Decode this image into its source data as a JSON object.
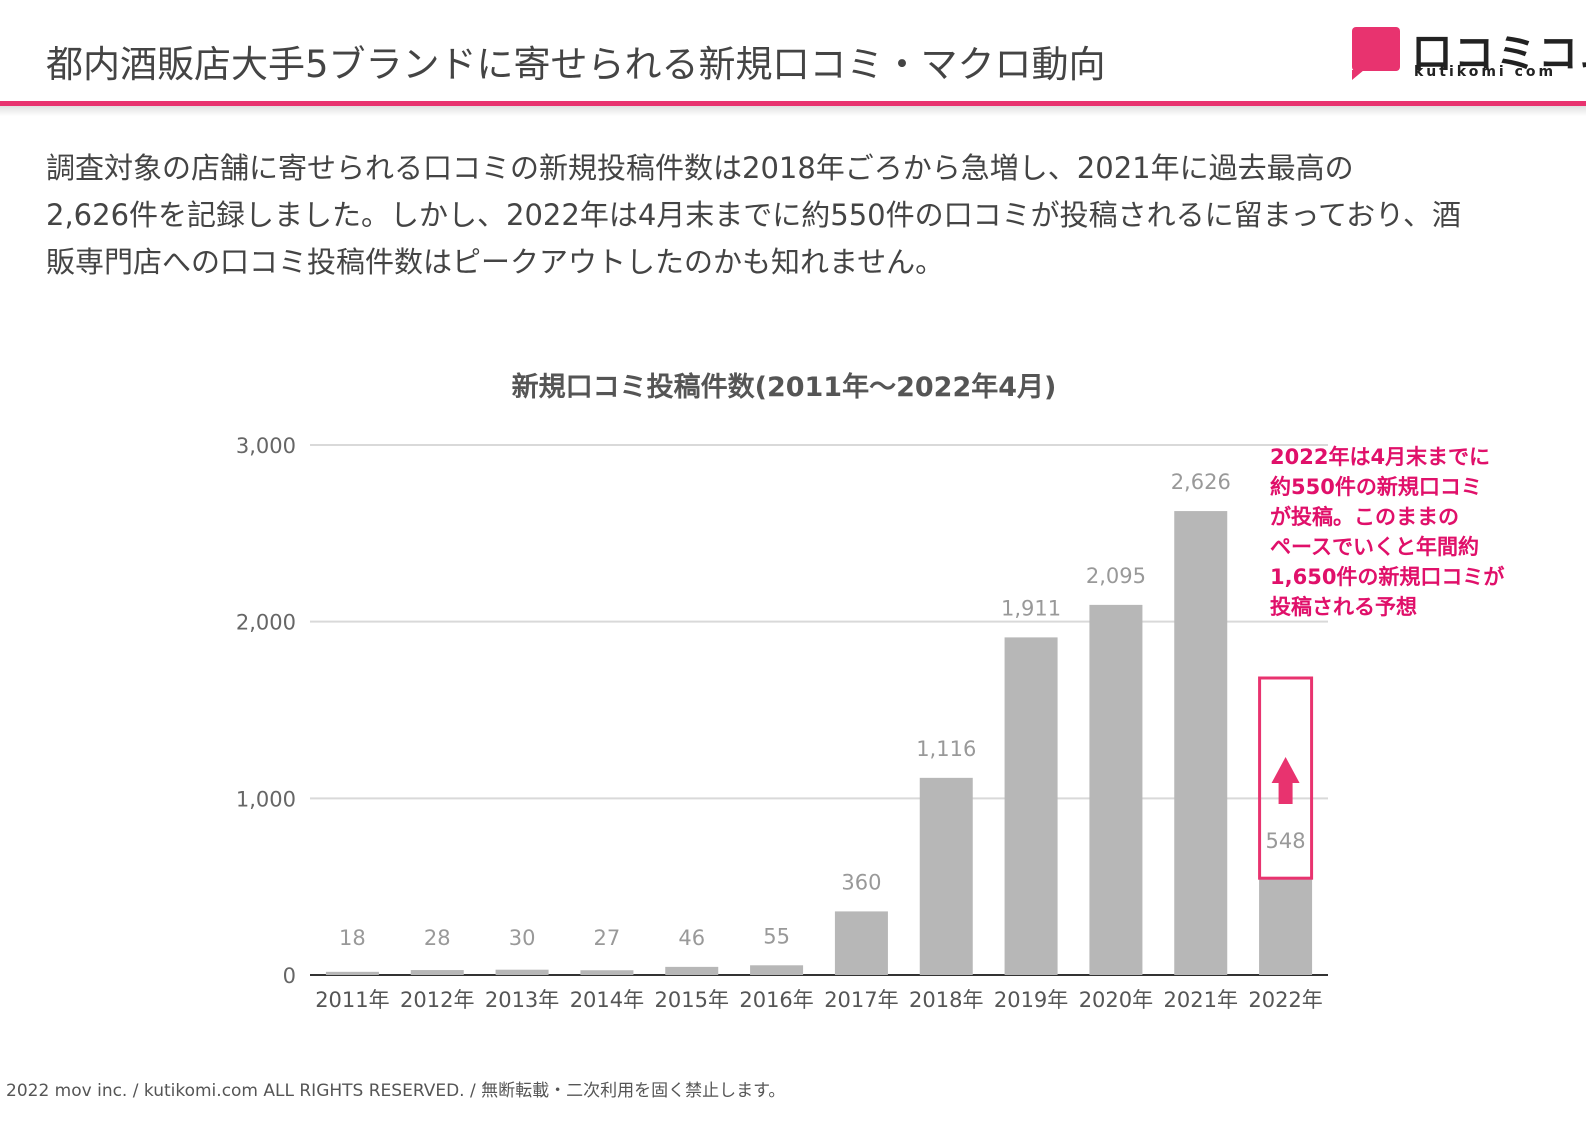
{
  "header": {
    "title": "都内酒販店大手5ブランドに寄せられる新規口コミ・マクロ動向"
  },
  "logo": {
    "name": "口コミコム",
    "sub": "kutikomi com"
  },
  "description": {
    "lines": [
      "調査対象の店舗に寄せられる口コミの新規投稿件数は2018年ごろから急増し、2021年に過去最高の",
      "2,626件を記録しました。しかし、2022年は4月末までに約550件の口コミが投稿されるに留まっており、酒",
      "販専門店への口コミ投稿件数はピークアウトしたのかも知れません。"
    ]
  },
  "chart_data": {
    "type": "bar",
    "title": "新規口コミ投稿件数(2011年～2022年4月)",
    "categories": [
      "2011年",
      "2012年",
      "2013年",
      "2014年",
      "2015年",
      "2016年",
      "2017年",
      "2018年",
      "2019年",
      "2020年",
      "2021年",
      "2022年"
    ],
    "values": [
      18,
      28,
      30,
      27,
      46,
      55,
      360,
      1116,
      1911,
      2095,
      2626,
      548
    ],
    "data_labels": [
      "18",
      "28",
      "30",
      "27",
      "46",
      "55",
      "360",
      "1,116",
      "1,911",
      "2,095",
      "2,626",
      "548"
    ],
    "yticks": [
      "0",
      "1,000",
      "2,000",
      "3,000"
    ],
    "ytick_values": [
      0,
      1000,
      2000,
      3000
    ],
    "ylim": [
      0,
      3000
    ],
    "xlabel": "",
    "ylabel": "",
    "bar_color": "#b7b7b7",
    "highlight_color": "#e8336f"
  },
  "annotation": {
    "lines": [
      "2022年は4月末までに",
      "約550件の新規口コミ",
      "が投稿。このままの",
      "ペースでいくと年間約",
      "1,650件の新規口コミが",
      "投稿される予想"
    ]
  },
  "footer": {
    "text": "2022 mov inc. / kutikomi.com ALL RIGHTS RESERVED. / 無断転載・二次利用を固く禁止します。"
  }
}
